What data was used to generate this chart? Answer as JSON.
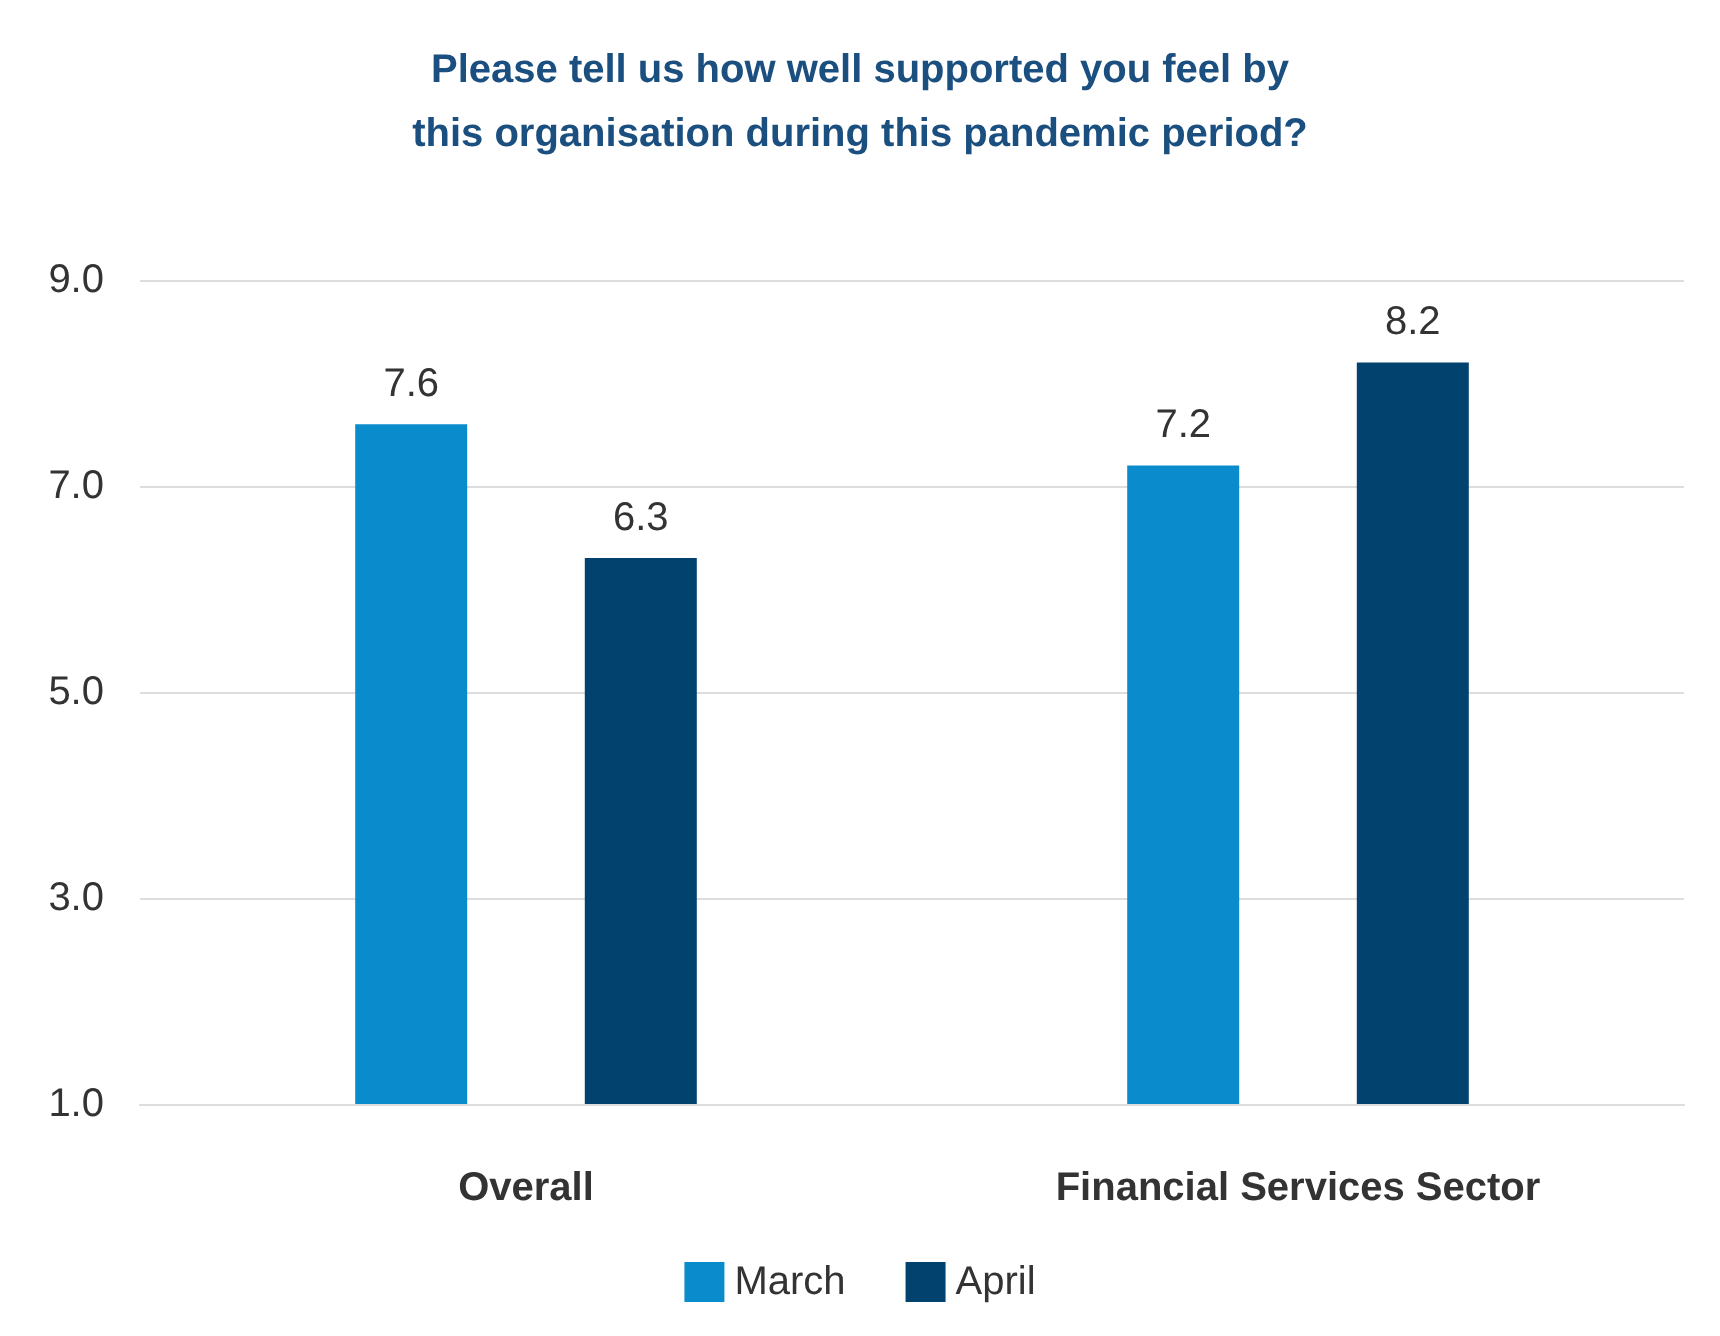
{
  "chart_data": {
    "type": "bar",
    "title": "Please tell us how well supported you feel by\nthis organisation during this pandemic period?",
    "categories": [
      "Overall",
      "Financial Services Sector"
    ],
    "series": [
      {
        "name": "March",
        "color": "#0a8ccc",
        "values": [
          7.6,
          7.2
        ]
      },
      {
        "name": "April",
        "color": "#02426f",
        "values": [
          6.3,
          8.2
        ]
      }
    ],
    "ylim": [
      1,
      9
    ],
    "yticks": [
      {
        "value": 1,
        "label": "1.0"
      },
      {
        "value": 3,
        "label": "3.0"
      },
      {
        "value": 5,
        "label": "5.0"
      },
      {
        "value": 7,
        "label": "7.0"
      },
      {
        "value": 9,
        "label": "9.0"
      }
    ],
    "grid": "y",
    "legend": "bottom",
    "data_labels": true
  }
}
